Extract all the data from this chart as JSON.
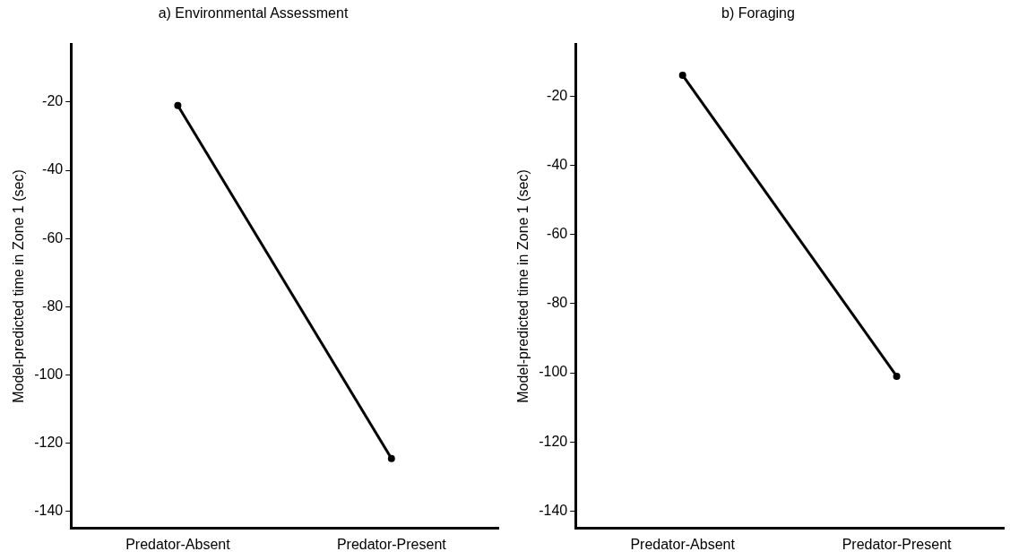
{
  "chart_data": [
    {
      "type": "line",
      "title": "a) Environmental Assessment",
      "ylabel": "Model-predicted time in Zone 1 (sec)",
      "categories": [
        "Predator-Absent",
        "Predator-Present"
      ],
      "series": [
        {
          "color": "#000000",
          "values": [
            -21,
            -124.5
          ]
        }
      ],
      "ylim": [
        -145,
        -3
      ],
      "yticks": [
        -140,
        -120,
        -100,
        -80,
        -60,
        -40,
        -20
      ],
      "grid": false,
      "legend": false,
      "marker": "circle",
      "line_style": "solid"
    },
    {
      "type": "line",
      "title": "b) Foraging",
      "ylabel": "Model-predicted time in Zone 1 (sec)",
      "categories": [
        "Predator-Absent",
        "Predator-Present"
      ],
      "series": [
        {
          "color": "#000000",
          "values": [
            -14,
            -101
          ]
        }
      ],
      "ylim": [
        -145,
        -5
      ],
      "yticks": [
        -140,
        -120,
        -100,
        -80,
        -60,
        -40,
        -20
      ],
      "grid": false,
      "legend": false,
      "marker": "circle",
      "line_style": "solid"
    }
  ]
}
